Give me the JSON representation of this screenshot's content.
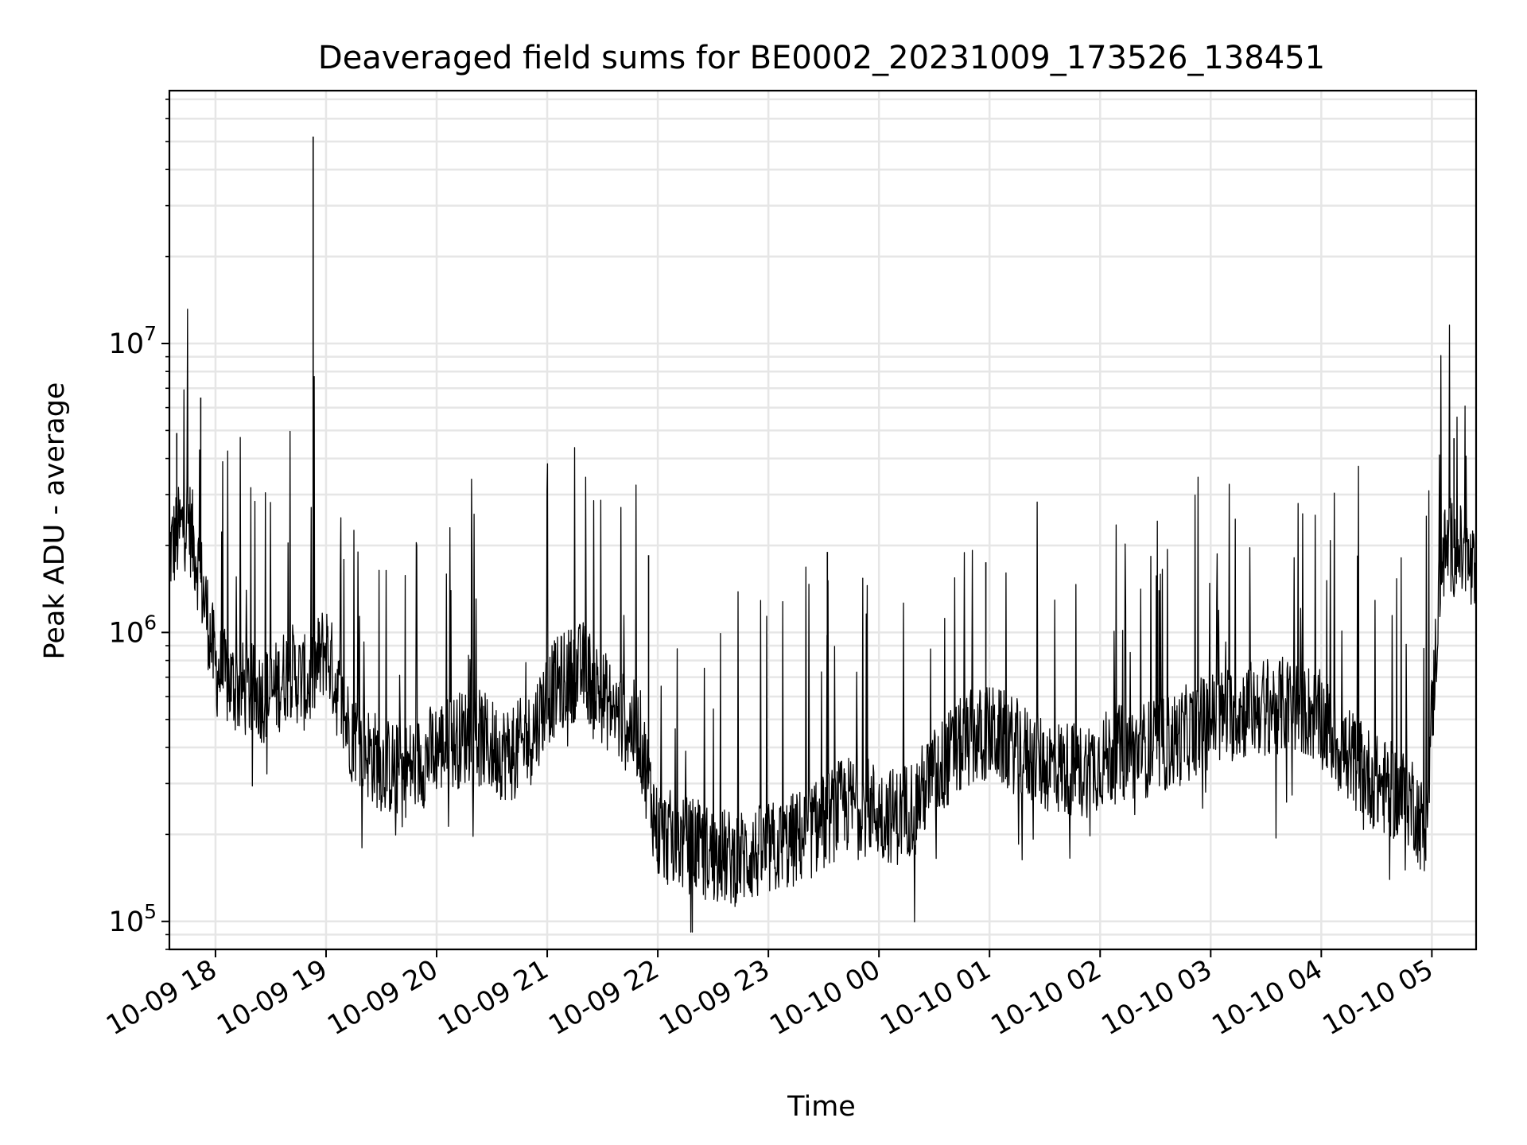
{
  "chart_data": {
    "type": "line",
    "title": "Deaveraged field sums for BE0002_20231009_173526_138451",
    "xlabel": "Time",
    "ylabel": "Peak ADU - average",
    "yscale": "log",
    "xlim": [
      "2023-10-09 17:35",
      "2023-10-10 05:24"
    ],
    "ylim": [
      80000,
      75000000
    ],
    "grid": "on",
    "line_color": "#000000",
    "x_ticks": [
      "10-09 18",
      "10-09 19",
      "10-09 20",
      "10-09 21",
      "10-09 22",
      "10-09 23",
      "10-10 00",
      "10-10 01",
      "10-10 02",
      "10-10 03",
      "10-10 04",
      "10-10 05"
    ],
    "x_tick_times": [
      "2023-10-09 18:00",
      "2023-10-09 19:00",
      "2023-10-09 20:00",
      "2023-10-09 21:00",
      "2023-10-09 22:00",
      "2023-10-09 23:00",
      "2023-10-10 00:00",
      "2023-10-10 01:00",
      "2023-10-10 02:00",
      "2023-10-10 03:00",
      "2023-10-10 04:00",
      "2023-10-10 05:00"
    ],
    "y_ticks": [
      {
        "value": 100000,
        "base": "10",
        "exp": "5"
      },
      {
        "value": 1000000,
        "base": "10",
        "exp": "6"
      },
      {
        "value": 10000000,
        "base": "10",
        "exp": "7"
      }
    ],
    "series": [
      {
        "name": "",
        "x": [
          "2023-10-09 17:35",
          "2023-10-09 17:40",
          "2023-10-09 17:45",
          "2023-10-09 17:50",
          "2023-10-09 17:55",
          "2023-10-09 18:00",
          "2023-10-09 18:10",
          "2023-10-09 18:20",
          "2023-10-09 18:30",
          "2023-10-09 18:40",
          "2023-10-09 18:50",
          "2023-10-09 19:00",
          "2023-10-09 19:10",
          "2023-10-09 19:20",
          "2023-10-09 19:30",
          "2023-10-09 19:40",
          "2023-10-09 19:50",
          "2023-10-09 20:00",
          "2023-10-09 20:10",
          "2023-10-09 20:20",
          "2023-10-09 20:30",
          "2023-10-09 20:40",
          "2023-10-09 20:50",
          "2023-10-09 21:00",
          "2023-10-09 21:10",
          "2023-10-09 21:20",
          "2023-10-09 21:30",
          "2023-10-09 21:40",
          "2023-10-09 21:50",
          "2023-10-09 22:00",
          "2023-10-09 22:10",
          "2023-10-09 22:20",
          "2023-10-09 22:30",
          "2023-10-09 22:40",
          "2023-10-09 22:50",
          "2023-10-09 23:00",
          "2023-10-09 23:10",
          "2023-10-09 23:20",
          "2023-10-09 23:30",
          "2023-10-09 23:40",
          "2023-10-09 23:50",
          "2023-10-10 00:00",
          "2023-10-10 00:10",
          "2023-10-10 00:20",
          "2023-10-10 00:30",
          "2023-10-10 00:40",
          "2023-10-10 00:50",
          "2023-10-10 01:00",
          "2023-10-10 01:10",
          "2023-10-10 01:20",
          "2023-10-10 01:30",
          "2023-10-10 01:40",
          "2023-10-10 01:50",
          "2023-10-10 02:00",
          "2023-10-10 02:10",
          "2023-10-10 02:20",
          "2023-10-10 02:30",
          "2023-10-10 02:40",
          "2023-10-10 02:50",
          "2023-10-10 03:00",
          "2023-10-10 03:10",
          "2023-10-10 03:20",
          "2023-10-10 03:30",
          "2023-10-10 03:40",
          "2023-10-10 03:50",
          "2023-10-10 04:00",
          "2023-10-10 04:10",
          "2023-10-10 04:20",
          "2023-10-10 04:30",
          "2023-10-10 04:40",
          "2023-10-10 04:50",
          "2023-10-10 04:56",
          "2023-10-10 05:00",
          "2023-10-10 05:05",
          "2023-10-10 05:10",
          "2023-10-10 05:15",
          "2023-10-10 05:20",
          "2023-10-10 05:24"
        ],
        "y": [
          1900000,
          2200000,
          2500000,
          1800000,
          1200000,
          750000,
          650000,
          620000,
          600000,
          750000,
          650000,
          900000,
          500000,
          400000,
          350000,
          330000,
          350000,
          400000,
          420000,
          450000,
          400000,
          380000,
          420000,
          600000,
          700000,
          750000,
          600000,
          500000,
          450000,
          200000,
          190000,
          180000,
          170000,
          165000,
          170000,
          175000,
          185000,
          200000,
          220000,
          250000,
          260000,
          240000,
          230000,
          260000,
          320000,
          380000,
          430000,
          450000,
          420000,
          380000,
          350000,
          340000,
          330000,
          360000,
          380000,
          390000,
          400000,
          420000,
          460000,
          500000,
          520000,
          540000,
          560000,
          560000,
          550000,
          500000,
          400000,
          350000,
          300000,
          280000,
          260000,
          200000,
          500000,
          1800000,
          2000000,
          1900000,
          1700000,
          1500000
        ]
      }
    ],
    "spikes": [
      {
        "x": "2023-10-09 18:53",
        "y": 52000000
      },
      {
        "x": "2023-10-09 17:52",
        "y": 6500000
      },
      {
        "x": "2023-10-09 17:39",
        "y": 4900000
      },
      {
        "x": "2023-10-10 05:12",
        "y": 4700000
      },
      {
        "x": "2023-10-09 21:55",
        "y": 1850000
      },
      {
        "x": "2023-10-09 23:32",
        "y": 1900000
      },
      {
        "x": "2023-10-10 00:58",
        "y": 1750000
      },
      {
        "x": "2023-10-10 02:32",
        "y": 1400000
      }
    ]
  }
}
